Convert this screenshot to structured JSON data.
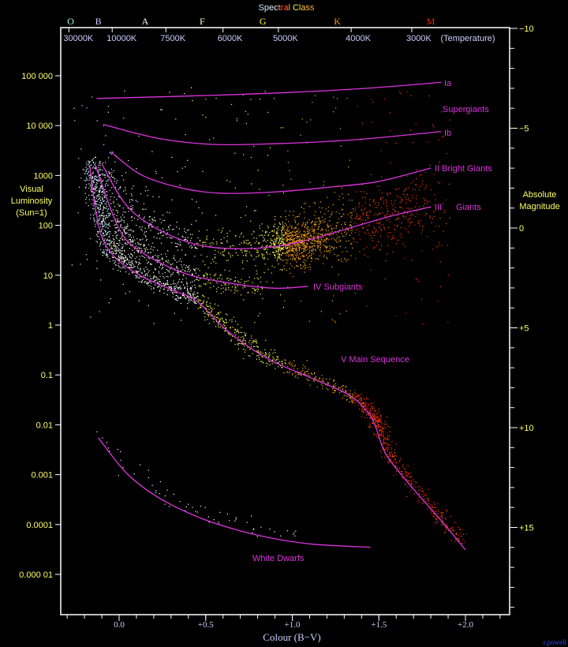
{
  "chart_data": {
    "type": "scatter",
    "title": "Spectral Class",
    "xlabel": "Colour (B−V)",
    "ylabel_left": "Visual Luminosity (Sun=1)",
    "ylabel_right": "Absolute Magnitude",
    "x_range": [
      -0.34,
      2.26
    ],
    "y_scale": "log",
    "grid": false,
    "x_ticks": [
      {
        "value": 0.0,
        "label": "0.0"
      },
      {
        "value": 0.5,
        "label": "+0.5"
      },
      {
        "value": 1.0,
        "label": "+1.0"
      },
      {
        "value": 1.5,
        "label": "+1.5"
      },
      {
        "value": 2.0,
        "label": "+2.0"
      }
    ],
    "y_ticks_left": [
      {
        "value": 100000,
        "label": "100 000"
      },
      {
        "value": 10000,
        "label": "10 000"
      },
      {
        "value": 1000,
        "label": "1000"
      },
      {
        "value": 100,
        "label": "100"
      },
      {
        "value": 10,
        "label": "10"
      },
      {
        "value": 1,
        "label": "1"
      },
      {
        "value": 0.1,
        "label": "0.1"
      },
      {
        "value": 0.01,
        "label": "0.01"
      },
      {
        "value": 0.001,
        "label": "0.001"
      },
      {
        "value": 0.0001,
        "label": "0.0001"
      },
      {
        "value": 1e-05,
        "label": "0.000 01"
      }
    ],
    "y_ticks_right": [
      {
        "value": -10,
        "label": "−10"
      },
      {
        "value": -5,
        "label": "−5"
      },
      {
        "value": 0,
        "label": "0"
      },
      {
        "value": 5,
        "label": "+5"
      },
      {
        "value": 10,
        "label": "+10"
      },
      {
        "value": 15,
        "label": "+15"
      }
    ],
    "top_temperature_ticks": [
      {
        "bv": -0.29,
        "label": "30000K"
      },
      {
        "bv": -0.04,
        "label": "10000K"
      },
      {
        "bv": 0.27,
        "label": "7500K"
      },
      {
        "bv": 0.6,
        "label": "6000K"
      },
      {
        "bv": 0.92,
        "label": "5000K"
      },
      {
        "bv": 1.34,
        "label": "4000K"
      },
      {
        "bv": 1.69,
        "label": "3000K"
      }
    ],
    "temperature_label": "(Temperature)",
    "spectral_classes": [
      {
        "bv": -0.28,
        "label": "O",
        "color": "#99ffcc"
      },
      {
        "bv": -0.12,
        "label": "B",
        "color": "#ccccff"
      },
      {
        "bv": 0.15,
        "label": "A",
        "color": "#ffffff"
      },
      {
        "bv": 0.48,
        "label": "F",
        "color": "#ffffdd"
      },
      {
        "bv": 0.83,
        "label": "G",
        "color": "#ffff33"
      },
      {
        "bv": 1.26,
        "label": "K",
        "color": "#ff9900"
      },
      {
        "bv": 1.8,
        "label": "M",
        "color": "#ff2200"
      }
    ],
    "series": [
      {
        "name": "Ia",
        "points": [
          [
            -0.13,
            35000
          ],
          [
            0.68,
            42000
          ],
          [
            1.36,
            54000
          ],
          [
            1.86,
            74000
          ]
        ]
      },
      {
        "name": "Ib",
        "points": [
          [
            -0.09,
            10500
          ],
          [
            0.22,
            5600
          ],
          [
            0.54,
            4200
          ],
          [
            0.91,
            4350
          ],
          [
            1.36,
            5200
          ],
          [
            1.86,
            7600
          ]
        ]
      },
      {
        "name": "II Bright Giants",
        "points": [
          [
            -0.05,
            3000
          ],
          [
            0.13,
            1020
          ],
          [
            0.36,
            560
          ],
          [
            0.59,
            440
          ],
          [
            0.91,
            470
          ],
          [
            1.23,
            590
          ],
          [
            1.5,
            760
          ],
          [
            1.8,
            1410
          ]
        ]
      },
      {
        "name": "III",
        "points": [
          [
            -0.1,
            1700
          ],
          [
            0.04,
            257
          ],
          [
            0.22,
            85
          ],
          [
            0.45,
            41
          ],
          [
            0.68,
            34
          ],
          [
            0.91,
            38
          ],
          [
            1.13,
            55
          ],
          [
            1.36,
            95
          ],
          [
            1.59,
            160
          ],
          [
            1.8,
            235
          ]
        ]
      },
      {
        "name": "IV Subgiants",
        "points": [
          [
            -0.14,
            1700
          ],
          [
            0.0,
            85
          ],
          [
            0.13,
            29
          ],
          [
            0.36,
            11.5
          ],
          [
            0.59,
            7.4
          ],
          [
            0.89,
            5.5
          ],
          [
            1.09,
            6.0
          ]
        ]
      },
      {
        "name": "V Main Sequence",
        "points": [
          [
            -0.17,
            1590
          ],
          [
            -0.14,
            257
          ],
          [
            -0.1,
            59
          ],
          [
            -0.02,
            22
          ],
          [
            0.13,
            9.5
          ],
          [
            0.31,
            5.0
          ],
          [
            0.45,
            3.0
          ],
          [
            0.63,
            0.74
          ],
          [
            0.86,
            0.21
          ],
          [
            1.09,
            0.093
          ],
          [
            1.32,
            0.041
          ],
          [
            1.43,
            0.019
          ],
          [
            1.48,
            0.0094
          ],
          [
            1.54,
            0.0026
          ],
          [
            1.68,
            0.00062
          ],
          [
            1.86,
            0.00012
          ],
          [
            2.0,
            3.1e-05
          ]
        ]
      },
      {
        "name": "White Dwarfs",
        "points": [
          [
            -0.12,
            0.0055
          ],
          [
            0.04,
            0.0011
          ],
          [
            0.22,
            0.00036
          ],
          [
            0.45,
            0.000144
          ],
          [
            0.68,
            7.8e-05
          ],
          [
            0.91,
            5.1e-05
          ],
          [
            1.13,
            4e-05
          ],
          [
            1.45,
            3.5e-05
          ]
        ]
      }
    ],
    "labels": {
      "ia": "Ia",
      "supergiants": "Supergiants",
      "ib": "Ib",
      "bright_giants": "II Bright Giants",
      "iii": "III",
      "giants": "Giants",
      "subgiants": "IV  Subgiants",
      "main_sequence": "V  Main Sequence",
      "white_dwarfs": "White Dwarfs"
    },
    "colors": {
      "curve": "#dd33dd",
      "left_axis_text": "#ffff66",
      "axis_line": "#ffffff",
      "axis_label_x": "#ccccff"
    }
  },
  "left_label": {
    "line1": "Visual",
    "line2": "Luminosity",
    "line3": "(Sun=1)"
  },
  "right_label": {
    "line1": "Absolute",
    "line2": "Magnitude"
  },
  "credit": "r.powell"
}
